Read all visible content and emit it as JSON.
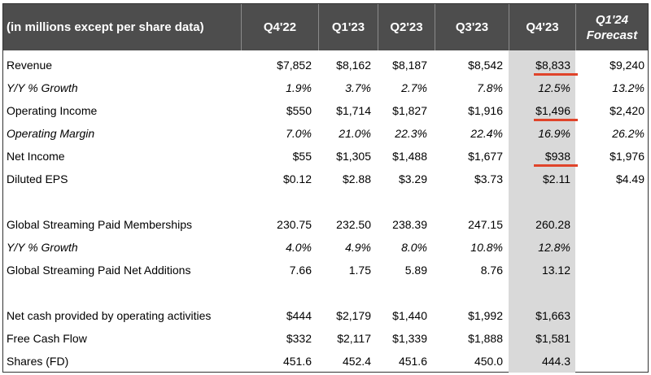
{
  "header": {
    "label": "(in millions except per share data)",
    "columns": [
      "Q4'22",
      "Q1'23",
      "Q2'23",
      "Q3'23",
      "Q4'23"
    ],
    "forecast_line1": "Q1'24",
    "forecast_line2": "Forecast"
  },
  "highlight_color": "#d9d9d9",
  "underline_color": "#e0442a",
  "rows": [
    {
      "label": "Revenue",
      "values": [
        "$7,852",
        "$8,162",
        "$8,187",
        "$8,542",
        "$8,833",
        "$9,240"
      ],
      "italic": false,
      "underlined": true
    },
    {
      "label": "Y/Y % Growth",
      "values": [
        "1.9%",
        "3.7%",
        "2.7%",
        "7.8%",
        "12.5%",
        "13.2%"
      ],
      "italic": true,
      "underlined": false
    },
    {
      "label": "Operating Income",
      "values": [
        "$550",
        "$1,714",
        "$1,827",
        "$1,916",
        "$1,496",
        "$2,420"
      ],
      "italic": false,
      "underlined": true
    },
    {
      "label": "Operating Margin",
      "values": [
        "7.0%",
        "21.0%",
        "22.3%",
        "22.4%",
        "16.9%",
        "26.2%"
      ],
      "italic": true,
      "underlined": false
    },
    {
      "label": "Net Income",
      "values": [
        "$55",
        "$1,305",
        "$1,488",
        "$1,677",
        "$938",
        "$1,976"
      ],
      "italic": false,
      "underlined": true
    },
    {
      "label": "Diluted EPS",
      "values": [
        "$0.12",
        "$2.88",
        "$3.29",
        "$3.73",
        "$2.11",
        "$4.49"
      ],
      "italic": false,
      "underlined": false
    },
    {
      "label": "",
      "values": [
        "",
        "",
        "",
        "",
        "",
        ""
      ],
      "italic": false,
      "underlined": false
    },
    {
      "label": "Global Streaming Paid Memberships",
      "values": [
        "230.75",
        "232.50",
        "238.39",
        "247.15",
        "260.28",
        ""
      ],
      "italic": false,
      "underlined": false
    },
    {
      "label": "Y/Y % Growth",
      "values": [
        "4.0%",
        "4.9%",
        "8.0%",
        "10.8%",
        "12.8%",
        ""
      ],
      "italic": true,
      "underlined": false
    },
    {
      "label": "Global Streaming Paid Net Additions",
      "values": [
        "7.66",
        "1.75",
        "5.89",
        "8.76",
        "13.12",
        ""
      ],
      "italic": false,
      "underlined": false
    },
    {
      "label": "",
      "values": [
        "",
        "",
        "",
        "",
        "",
        ""
      ],
      "italic": false,
      "underlined": false
    },
    {
      "label": "Net cash provided by operating activities",
      "values": [
        "$444",
        "$2,179",
        "$1,440",
        "$1,992",
        "$1,663",
        ""
      ],
      "italic": false,
      "underlined": false
    },
    {
      "label": "Free Cash Flow",
      "values": [
        "$332",
        "$2,117",
        "$1,339",
        "$1,888",
        "$1,581",
        ""
      ],
      "italic": false,
      "underlined": false
    },
    {
      "label": "Shares (FD)",
      "values": [
        "451.6",
        "452.4",
        "451.6",
        "450.0",
        "444.3",
        ""
      ],
      "italic": false,
      "underlined": false
    }
  ]
}
